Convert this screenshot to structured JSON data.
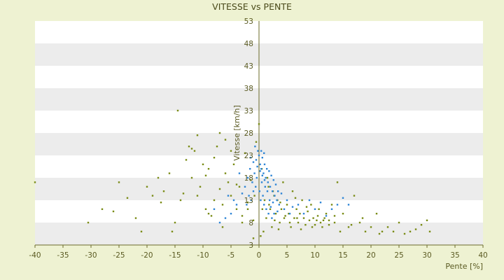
{
  "chart_data": {
    "type": "scatter",
    "title": "VITESSE vs PENTE",
    "xlabel": "Pente [%]",
    "ylabel": "Vitesse [km/h]",
    "xlim": [
      -40,
      40
    ],
    "ylim": [
      3,
      53
    ],
    "x_ticks": [
      "-40",
      "-35",
      "-30",
      "-25",
      "-20",
      "-15",
      "-10",
      "-5",
      "0",
      "5",
      "10",
      "15",
      "20",
      "25",
      "30",
      "35",
      "40"
    ],
    "y_ticks": [
      "3",
      "8",
      "13",
      "18",
      "23",
      "28",
      "33",
      "38",
      "43",
      "48",
      "53"
    ],
    "grid": "horizontal bands",
    "legend": "none",
    "colors": {
      "background": "#eef2d2",
      "band_light": "#ffffff",
      "band_dark": "#ececec",
      "axis": "#6b6b2a",
      "text": "#5a5a22",
      "series_a": "#7a8c16",
      "series_b": "#2f86d6"
    },
    "series": [
      {
        "color": "#7a8c16",
        "points": [
          [
            -40,
            17
          ],
          [
            -30.5,
            8
          ],
          [
            -28,
            11
          ],
          [
            -26,
            10.5
          ],
          [
            -25,
            17
          ],
          [
            -23.5,
            13.5
          ],
          [
            -22,
            9
          ],
          [
            -21,
            6
          ],
          [
            -20,
            16
          ],
          [
            -19,
            14
          ],
          [
            -18,
            18
          ],
          [
            -17.5,
            12.5
          ],
          [
            -17,
            15
          ],
          [
            -16,
            19
          ],
          [
            -15.5,
            6
          ],
          [
            -15,
            8
          ],
          [
            -14,
            13
          ],
          [
            -13,
            22
          ],
          [
            -12.5,
            25
          ],
          [
            -12,
            18
          ],
          [
            -11.5,
            24
          ],
          [
            -11,
            14
          ],
          [
            -10.5,
            16
          ],
          [
            -10,
            21
          ],
          [
            -9.5,
            11
          ],
          [
            -9,
            20
          ],
          [
            -8.5,
            9.5
          ],
          [
            -8,
            13
          ],
          [
            -7.5,
            25
          ],
          [
            -7,
            15.5
          ],
          [
            -6.5,
            12
          ],
          [
            -6,
            19
          ],
          [
            -5.5,
            17
          ],
          [
            -5,
            14
          ],
          [
            -4.5,
            21
          ],
          [
            -4,
            11
          ],
          [
            -3.5,
            16
          ],
          [
            -3,
            9.5
          ],
          [
            -2.5,
            23.5
          ],
          [
            -2,
            12.5
          ],
          [
            -1.5,
            17.5
          ],
          [
            -1,
            8.5
          ],
          [
            -0.5,
            26
          ],
          [
            0,
            30
          ],
          [
            0.3,
            5
          ],
          [
            0.6,
            11
          ],
          [
            1,
            13
          ],
          [
            1.3,
            9
          ],
          [
            1.7,
            16
          ],
          [
            2,
            11
          ],
          [
            2.3,
            7
          ],
          [
            2.7,
            14
          ],
          [
            3,
            10
          ],
          [
            3.3,
            13
          ],
          [
            3.7,
            8
          ],
          [
            4,
            11
          ],
          [
            4.3,
            17
          ],
          [
            4.7,
            9.5
          ],
          [
            5,
            12
          ],
          [
            5.3,
            10
          ],
          [
            5.7,
            7
          ],
          [
            6,
            15
          ],
          [
            6.3,
            9
          ],
          [
            6.7,
            11
          ],
          [
            7,
            8
          ],
          [
            7.3,
            10
          ],
          [
            7.7,
            13
          ],
          [
            8,
            9
          ],
          [
            8.3,
            7.5
          ],
          [
            8.7,
            10.5
          ],
          [
            9,
            8.5
          ],
          [
            9.3,
            12
          ],
          [
            9.7,
            9
          ],
          [
            10,
            7.5
          ],
          [
            10.3,
            8.5
          ],
          [
            10.7,
            11
          ],
          [
            11,
            8
          ],
          [
            11.3,
            7
          ],
          [
            11.7,
            9
          ],
          [
            12,
            10
          ],
          [
            12.5,
            7.5
          ],
          [
            13,
            12
          ],
          [
            13.5,
            8
          ],
          [
            14,
            17
          ],
          [
            14.5,
            6
          ],
          [
            15,
            10
          ],
          [
            16,
            7
          ],
          [
            17,
            14
          ],
          [
            18,
            8
          ],
          [
            19,
            6
          ],
          [
            20,
            7
          ],
          [
            21,
            10
          ],
          [
            22,
            6
          ],
          [
            23,
            7
          ],
          [
            24,
            6
          ],
          [
            25,
            8
          ],
          [
            26,
            5.5
          ],
          [
            27,
            6
          ],
          [
            28,
            6.5
          ],
          [
            29,
            7.5
          ],
          [
            30,
            8.5
          ],
          [
            30.5,
            6
          ],
          [
            -14.5,
            33
          ],
          [
            -12,
            24.5
          ],
          [
            -9,
            10
          ],
          [
            -7,
            28
          ],
          [
            -6,
            26.5
          ],
          [
            -4,
            16.5
          ],
          [
            -3,
            8
          ],
          [
            -1,
            4.5
          ],
          [
            0.5,
            20
          ],
          [
            1.5,
            18
          ],
          [
            2.5,
            15
          ],
          [
            3.5,
            6.5
          ],
          [
            4.5,
            9
          ],
          [
            6.5,
            13.5
          ],
          [
            7.5,
            6.5
          ],
          [
            9.5,
            7
          ],
          [
            11.5,
            8.5
          ],
          [
            13.5,
            9.5
          ],
          [
            16.5,
            7.5
          ],
          [
            18.5,
            9
          ],
          [
            21.5,
            5.5
          ],
          [
            -13.5,
            14.5
          ],
          [
            -11,
            27.5
          ],
          [
            -9.5,
            18.5
          ],
          [
            -8,
            22.5
          ],
          [
            -6.5,
            7
          ],
          [
            -5,
            24
          ],
          [
            -2,
            11
          ],
          [
            -0.8,
            14
          ],
          [
            0.8,
            6
          ],
          [
            1.8,
            12
          ],
          [
            2.8,
            8.5
          ],
          [
            3.8,
            12.5
          ],
          [
            5.5,
            8
          ],
          [
            6.8,
            9
          ],
          [
            8.5,
            11.5
          ],
          [
            10.5,
            9.5
          ],
          [
            12.5,
            8.5
          ]
        ]
      },
      {
        "color": "#2f86d6",
        "points": [
          [
            -0.5,
            22
          ],
          [
            -0.2,
            24
          ],
          [
            0,
            23
          ],
          [
            0.2,
            21
          ],
          [
            0.4,
            20
          ],
          [
            0.6,
            22.5
          ],
          [
            0.8,
            19
          ],
          [
            1,
            21
          ],
          [
            1.2,
            18
          ],
          [
            1.4,
            20
          ],
          [
            1.6,
            17
          ],
          [
            1.8,
            19.5
          ],
          [
            2,
            16
          ],
          [
            2.2,
            18.5
          ],
          [
            2.4,
            15
          ],
          [
            2.6,
            17.5
          ],
          [
            2.8,
            14
          ],
          [
            3,
            16.5
          ],
          [
            3.2,
            13
          ],
          [
            3.4,
            15
          ],
          [
            -0.4,
            18
          ],
          [
            -0.6,
            16
          ],
          [
            -0.8,
            19
          ],
          [
            -1,
            15
          ],
          [
            -1.2,
            17
          ],
          [
            -1.4,
            13
          ],
          [
            -1.6,
            20
          ],
          [
            -1.8,
            14
          ],
          [
            -2,
            18
          ],
          [
            -2.2,
            12
          ],
          [
            -2.5,
            16
          ],
          [
            -3,
            14.5
          ],
          [
            -3.5,
            19
          ],
          [
            -4,
            12
          ],
          [
            -4.5,
            13
          ],
          [
            -5,
            10
          ],
          [
            -5.5,
            14
          ],
          [
            -6,
            9
          ],
          [
            -7,
            8
          ],
          [
            -8,
            11
          ],
          [
            0.1,
            15
          ],
          [
            0.3,
            13
          ],
          [
            0.5,
            17
          ],
          [
            0.7,
            14
          ],
          [
            0.9,
            12
          ],
          [
            1.1,
            16
          ],
          [
            1.3,
            11
          ],
          [
            1.5,
            15
          ],
          [
            1.7,
            10
          ],
          [
            1.9,
            13
          ],
          [
            2.1,
            11.5
          ],
          [
            2.3,
            9
          ],
          [
            2.5,
            12.5
          ],
          [
            2.7,
            10
          ],
          [
            3.3,
            10.5
          ],
          [
            3.6,
            12
          ],
          [
            4,
            14.5
          ],
          [
            4.5,
            11
          ],
          [
            5,
            13
          ],
          [
            5.5,
            10
          ],
          [
            6,
            11.5
          ],
          [
            7,
            12
          ],
          [
            8,
            10
          ],
          [
            9,
            13
          ],
          [
            10,
            11
          ],
          [
            11,
            12.5
          ],
          [
            12,
            9.5
          ],
          [
            13,
            11
          ],
          [
            14,
            12
          ],
          [
            15,
            13.5
          ],
          [
            16,
            12
          ],
          [
            -0.3,
            20.5
          ],
          [
            0.2,
            19.5
          ],
          [
            0.6,
            18.5
          ],
          [
            1,
            17.5
          ],
          [
            -1,
            21.5
          ],
          [
            -1.5,
            22.5
          ],
          [
            0.4,
            24
          ],
          [
            -0.7,
            25
          ],
          [
            0.9,
            23.5
          ]
        ]
      }
    ]
  }
}
